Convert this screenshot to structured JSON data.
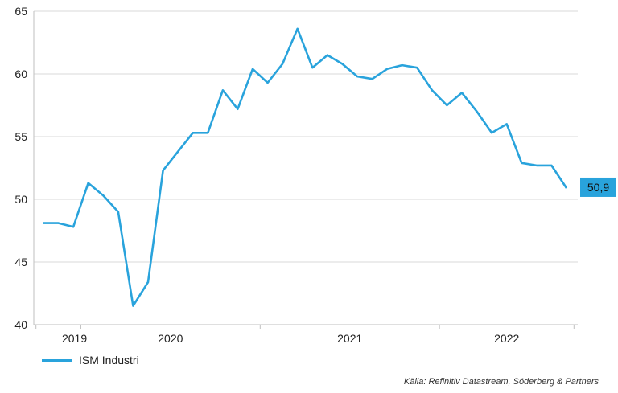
{
  "chart_data": {
    "type": "line",
    "title": "",
    "xlabel": "",
    "ylabel": "",
    "ylim": [
      40,
      65
    ],
    "yticks": [
      40,
      45,
      50,
      55,
      60,
      65
    ],
    "ytick_labels": [
      "40",
      "45",
      "50",
      "55",
      "60",
      "65"
    ],
    "xtick_labels": [
      "2019",
      "2020",
      "2021",
      "2022"
    ],
    "grid": "horizontal",
    "legend_position": "bottom-left",
    "line_color": "#29a3dc",
    "series": [
      {
        "name": "ISM Industri",
        "values": [
          48.1,
          48.1,
          47.8,
          51.3,
          50.3,
          49.0,
          41.5,
          43.4,
          52.3,
          53.8,
          55.3,
          55.3,
          58.7,
          57.2,
          60.4,
          59.3,
          60.8,
          63.6,
          60.5,
          61.5,
          60.8,
          59.8,
          59.6,
          60.4,
          60.7,
          60.5,
          58.7,
          57.5,
          58.5,
          57.0,
          55.3,
          56.0,
          52.9,
          52.7,
          52.7,
          50.9
        ]
      }
    ],
    "end_label": "50,9"
  },
  "source": "Källa: Refinitiv Datastream, Söderberg & Partners"
}
